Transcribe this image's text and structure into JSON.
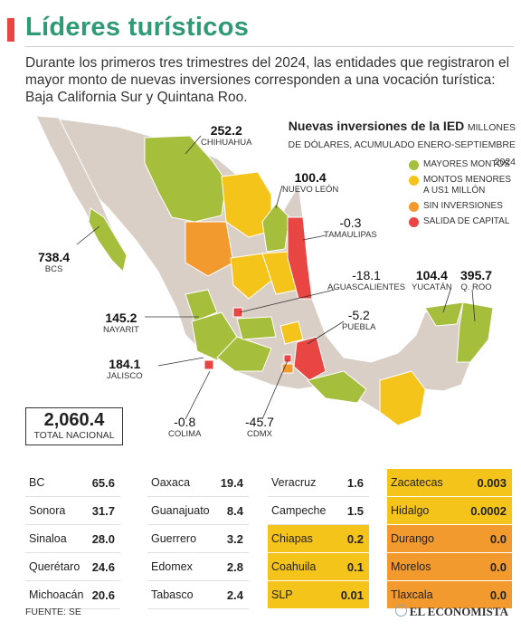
{
  "title": "Líderes turísticos",
  "subtitle": "Durante los primeros tres trimestres del 2024, las entidades que registraron el mayor monto de nuevas inversiones corresponden a una vocación turística: Baja California Sur y Quintana Roo.",
  "legend_title": "Nuevas inversiones de la IED",
  "legend_unit": "MILLONES DE DÓLARES, ACUMULADO ENERO-SEPTIEMBRE 2024",
  "legend": [
    {
      "label": "MAYORES MONTOS",
      "color": "#a5be3c"
    },
    {
      "label": "MONTOS MENORES A US1 MILLÓN",
      "color": "#f5c41a"
    },
    {
      "label": "SIN INVERSIONES",
      "color": "#f29a2e"
    },
    {
      "label": "SALIDA DE CAPITAL",
      "color": "#e84543"
    }
  ],
  "map_labels": [
    {
      "value": "252.2",
      "state": "CHIHUAHUA",
      "bold": true
    },
    {
      "value": "100.4",
      "state": "NUEVO LEÓN",
      "bold": true
    },
    {
      "value": "-0.3",
      "state": "TAMAULIPAS",
      "bold": false
    },
    {
      "value": "738.4",
      "state": "BCS",
      "bold": true
    },
    {
      "value": "-18.1",
      "state": "AGUASCALIENTES",
      "bold": false
    },
    {
      "value": "104.4",
      "state": "YUCATÁN",
      "bold": true
    },
    {
      "value": "395.7",
      "state": "Q. ROO",
      "bold": true
    },
    {
      "value": "145.2",
      "state": "NAYARIT",
      "bold": true
    },
    {
      "value": "-5.2",
      "state": "PUEBLA",
      "bold": false
    },
    {
      "value": "184.1",
      "state": "JALISCO",
      "bold": true
    },
    {
      "value": "-0.8",
      "state": "COLIMA",
      "bold": false
    },
    {
      "value": "-45.7",
      "state": "CDMX",
      "bold": false
    }
  ],
  "total": {
    "value": "2,060.4",
    "label": "TOTAL NACIONAL"
  },
  "chart_data": {
    "type": "table",
    "title": "Nuevas inversiones de la IED",
    "unit": "MILLONES DE DÓLARES, ACUMULADO ENERO-SEPTIEMBRE 2024",
    "total": 2060.4,
    "columns": [
      [
        {
          "state": "BC",
          "value": "65.6",
          "category": "MAYORES MONTOS"
        },
        {
          "state": "Sonora",
          "value": "31.7",
          "category": "MAYORES MONTOS"
        },
        {
          "state": "Sinaloa",
          "value": "28.0",
          "category": "MAYORES MONTOS"
        },
        {
          "state": "Querétaro",
          "value": "24.6",
          "category": "MAYORES MONTOS"
        },
        {
          "state": "Michoacán",
          "value": "20.6",
          "category": "MAYORES MONTOS"
        }
      ],
      [
        {
          "state": "Oaxaca",
          "value": "19.4",
          "category": "MAYORES MONTOS"
        },
        {
          "state": "Guanajuato",
          "value": "8.4",
          "category": "MAYORES MONTOS"
        },
        {
          "state": "Guerrero",
          "value": "3.2",
          "category": "MAYORES MONTOS"
        },
        {
          "state": "Edomex",
          "value": "2.8",
          "category": "MAYORES MONTOS"
        },
        {
          "state": "Tabasco",
          "value": "2.4",
          "category": "MAYORES MONTOS"
        }
      ],
      [
        {
          "state": "Veracruz",
          "value": "1.6",
          "category": "MAYORES MONTOS"
        },
        {
          "state": "Campeche",
          "value": "1.5",
          "category": "MAYORES MONTOS"
        },
        {
          "state": "Chiapas",
          "value": "0.2",
          "category": "MONTOS MENORES A US1 MILLÓN"
        },
        {
          "state": "Coahuila",
          "value": "0.1",
          "category": "MONTOS MENORES A US1 MILLÓN"
        },
        {
          "state": "SLP",
          "value": "0.01",
          "category": "MONTOS MENORES A US1 MILLÓN"
        }
      ],
      [
        {
          "state": "Zacatecas",
          "value": "0.003",
          "category": "MONTOS MENORES A US1 MILLÓN"
        },
        {
          "state": "Hidalgo",
          "value": "0.0002",
          "category": "MONTOS MENORES A US1 MILLÓN"
        },
        {
          "state": "Durango",
          "value": "0.0",
          "category": "SIN INVERSIONES"
        },
        {
          "state": "Morelos",
          "value": "0.0",
          "category": "SIN INVERSIONES"
        },
        {
          "state": "Tlaxcala",
          "value": "0.0",
          "category": "SIN INVERSIONES"
        }
      ]
    ],
    "category_colors": {
      "MAYORES MONTOS": "#ffffff",
      "MONTOS MENORES A US1 MILLÓN": "#f5c41a",
      "SIN INVERSIONES": "#f29a2e"
    }
  },
  "source": "FUENTE: SE",
  "brand": "EL ECONOMISTA"
}
